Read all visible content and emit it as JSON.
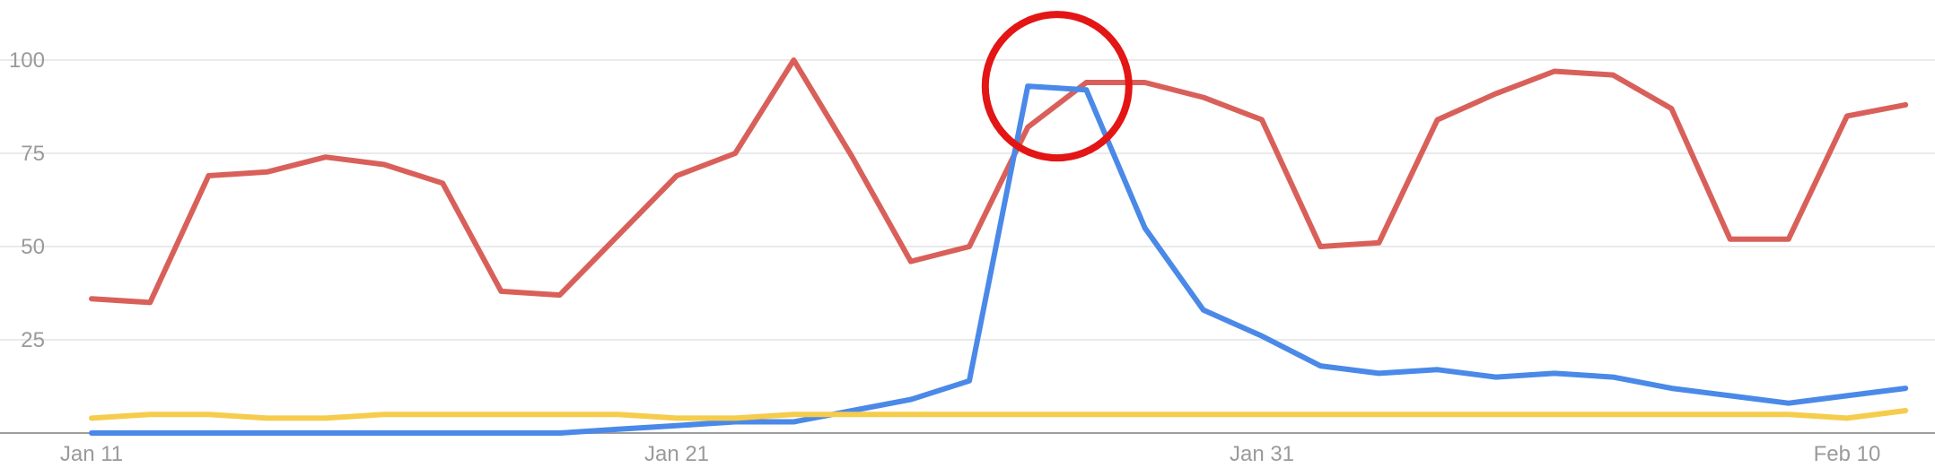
{
  "chart_data": {
    "type": "line",
    "title": "",
    "xlabel": "",
    "ylabel": "",
    "ylim": [
      0,
      100
    ],
    "y_ticks": [
      25,
      50,
      75,
      100
    ],
    "y_tick_labels": [
      "25",
      "50",
      "75",
      "100"
    ],
    "x_tick_labels": [
      {
        "index": 0,
        "label": "Jan 11"
      },
      {
        "index": 10,
        "label": "Jan 21"
      },
      {
        "index": 20,
        "label": "Jan 31"
      },
      {
        "index": 30,
        "label": "Feb 10"
      }
    ],
    "x": [
      "Jan 11",
      "Jan 12",
      "Jan 13",
      "Jan 14",
      "Jan 15",
      "Jan 16",
      "Jan 17",
      "Jan 18",
      "Jan 19",
      "Jan 20",
      "Jan 21",
      "Jan 22",
      "Jan 23",
      "Jan 24",
      "Jan 25",
      "Jan 26",
      "Jan 27",
      "Jan 28",
      "Jan 29",
      "Jan 30",
      "Jan 31",
      "Feb 1",
      "Feb 2",
      "Feb 3",
      "Feb 4",
      "Feb 5",
      "Feb 6",
      "Feb 7",
      "Feb 8",
      "Feb 9",
      "Feb 10",
      "Feb 11"
    ],
    "grid": true,
    "series": [
      {
        "color": "#d9605a",
        "values": [
          36,
          35,
          69,
          70,
          74,
          72,
          67,
          38,
          37,
          53,
          69,
          75,
          100,
          74,
          46,
          50,
          82,
          94,
          94,
          90,
          84,
          50,
          51,
          84,
          91,
          97,
          96,
          87,
          52,
          52,
          85,
          88
        ]
      },
      {
        "color": "#4a89e8",
        "values": [
          0,
          0,
          0,
          0,
          0,
          0,
          0,
          0,
          0,
          1,
          2,
          3,
          3,
          6,
          9,
          14,
          93,
          92,
          55,
          33,
          26,
          18,
          16,
          17,
          15,
          16,
          15,
          12,
          10,
          8,
          10,
          12
        ]
      },
      {
        "color": "#f5cc4c",
        "values": [
          4,
          5,
          5,
          4,
          4,
          5,
          5,
          5,
          5,
          5,
          4,
          4,
          5,
          5,
          5,
          5,
          5,
          5,
          5,
          5,
          5,
          5,
          5,
          5,
          5,
          5,
          5,
          5,
          5,
          5,
          4,
          6
        ]
      }
    ],
    "annotation": {
      "type": "circle",
      "color": "#e31515",
      "center_x_index": 16.5,
      "center_y_value": 93
    }
  }
}
